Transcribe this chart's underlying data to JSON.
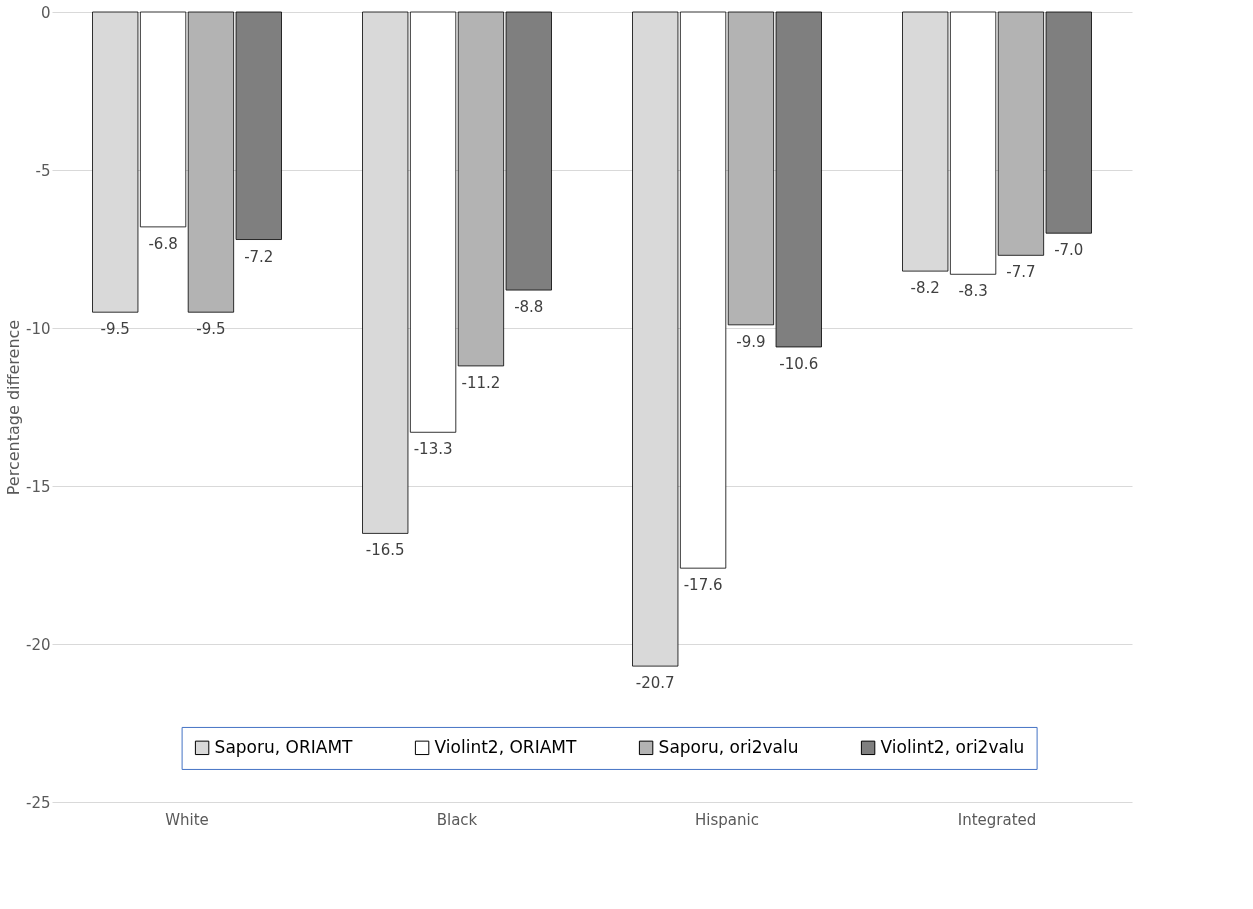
{
  "chart_data": {
    "type": "bar",
    "ylabel": "Percentage difference",
    "categories": [
      "White",
      "Black",
      "Hispanic",
      "Integrated"
    ],
    "series": [
      {
        "name": "Saporu, ORIAMT",
        "color": "#d9d9d9",
        "values": [
          -9.5,
          -16.5,
          -20.7,
          -8.2
        ],
        "value_labels": [
          "-9.5",
          "-16.5",
          "-20.7",
          "-8.2"
        ]
      },
      {
        "name": "Violint2, ORIAMT",
        "color": "#ffffff",
        "values": [
          -6.8,
          -13.3,
          -17.6,
          -8.3
        ],
        "value_labels": [
          "-6.8",
          "-13.3",
          "-17.6",
          "-8.3"
        ]
      },
      {
        "name": "Saporu, ori2valu",
        "color": "#b3b3b3",
        "values": [
          -9.5,
          -11.2,
          -9.9,
          -7.7
        ],
        "value_labels": [
          "-9.5",
          "-11.2",
          "-9.9",
          "-7.7"
        ]
      },
      {
        "name": "Violint2, ori2valu",
        "color": "#7f7f7f",
        "values": [
          -7.2,
          -8.8,
          -10.6,
          -7.0
        ],
        "value_labels": [
          "-7.2",
          "-8.8",
          "-10.6",
          "-7.0"
        ]
      }
    ],
    "ylim": [
      -25,
      0
    ],
    "yticks": [
      -25,
      -20,
      -15,
      -10,
      -5,
      0
    ],
    "grid": "y",
    "legend": "bottom"
  }
}
